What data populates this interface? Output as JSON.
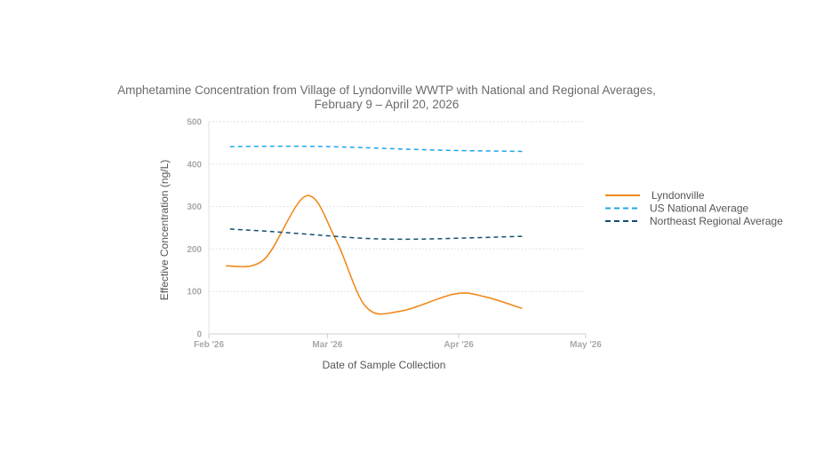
{
  "chart_data": {
    "type": "line",
    "title_lines": [
      "Amphetamine Concentration from Village of Lyndonville WWTP with National and Regional Averages,",
      "February 9 – April 20, 2026"
    ],
    "xlabel": "Date of Sample Collection",
    "ylabel": "Effective Concentration (ng/L)",
    "ylim": [
      0,
      500
    ],
    "yticks": [
      "0",
      "100",
      "200",
      "300",
      "400",
      "500"
    ],
    "xlim": [
      "2026-02-01",
      "2026-05-01"
    ],
    "xticks": [
      {
        "date": "2026-02-01",
        "label": "Feb '26"
      },
      {
        "date": "2026-03-01",
        "label": "Mar '26"
      },
      {
        "date": "2026-04-01",
        "label": "Apr '26"
      },
      {
        "date": "2026-05-01",
        "label": "May '26"
      }
    ],
    "grid": true,
    "legend_position": "right",
    "series": [
      {
        "name": "Lyndonville",
        "color": "#f08a1e",
        "dash": "solid",
        "points": [
          {
            "x": "2026-02-05",
            "y": 160
          },
          {
            "x": "2026-02-14",
            "y": 175
          },
          {
            "x": "2026-02-24",
            "y": 325
          },
          {
            "x": "2026-03-03",
            "y": 222
          },
          {
            "x": "2026-03-10",
            "y": 65
          },
          {
            "x": "2026-03-18",
            "y": 53
          },
          {
            "x": "2026-03-31",
            "y": 94
          },
          {
            "x": "2026-04-07",
            "y": 88
          },
          {
            "x": "2026-04-16",
            "y": 60
          }
        ]
      },
      {
        "name": "US National Average",
        "color": "#1ea6e8",
        "dash": "dashed",
        "points": [
          {
            "x": "2026-02-06",
            "y": 441
          },
          {
            "x": "2026-02-13",
            "y": 442
          },
          {
            "x": "2026-02-24",
            "y": 442
          },
          {
            "x": "2026-03-06",
            "y": 440
          },
          {
            "x": "2026-03-20",
            "y": 435
          },
          {
            "x": "2026-04-01",
            "y": 432
          },
          {
            "x": "2026-04-16",
            "y": 430
          }
        ]
      },
      {
        "name": "Northeast Regional Average",
        "color": "#124d6e",
        "dash": "dashed",
        "points": [
          {
            "x": "2026-02-06",
            "y": 247
          },
          {
            "x": "2026-02-16",
            "y": 241
          },
          {
            "x": "2026-02-28",
            "y": 232
          },
          {
            "x": "2026-03-10",
            "y": 225
          },
          {
            "x": "2026-03-20",
            "y": 223
          },
          {
            "x": "2026-04-03",
            "y": 226
          },
          {
            "x": "2026-04-16",
            "y": 230
          }
        ]
      }
    ]
  }
}
